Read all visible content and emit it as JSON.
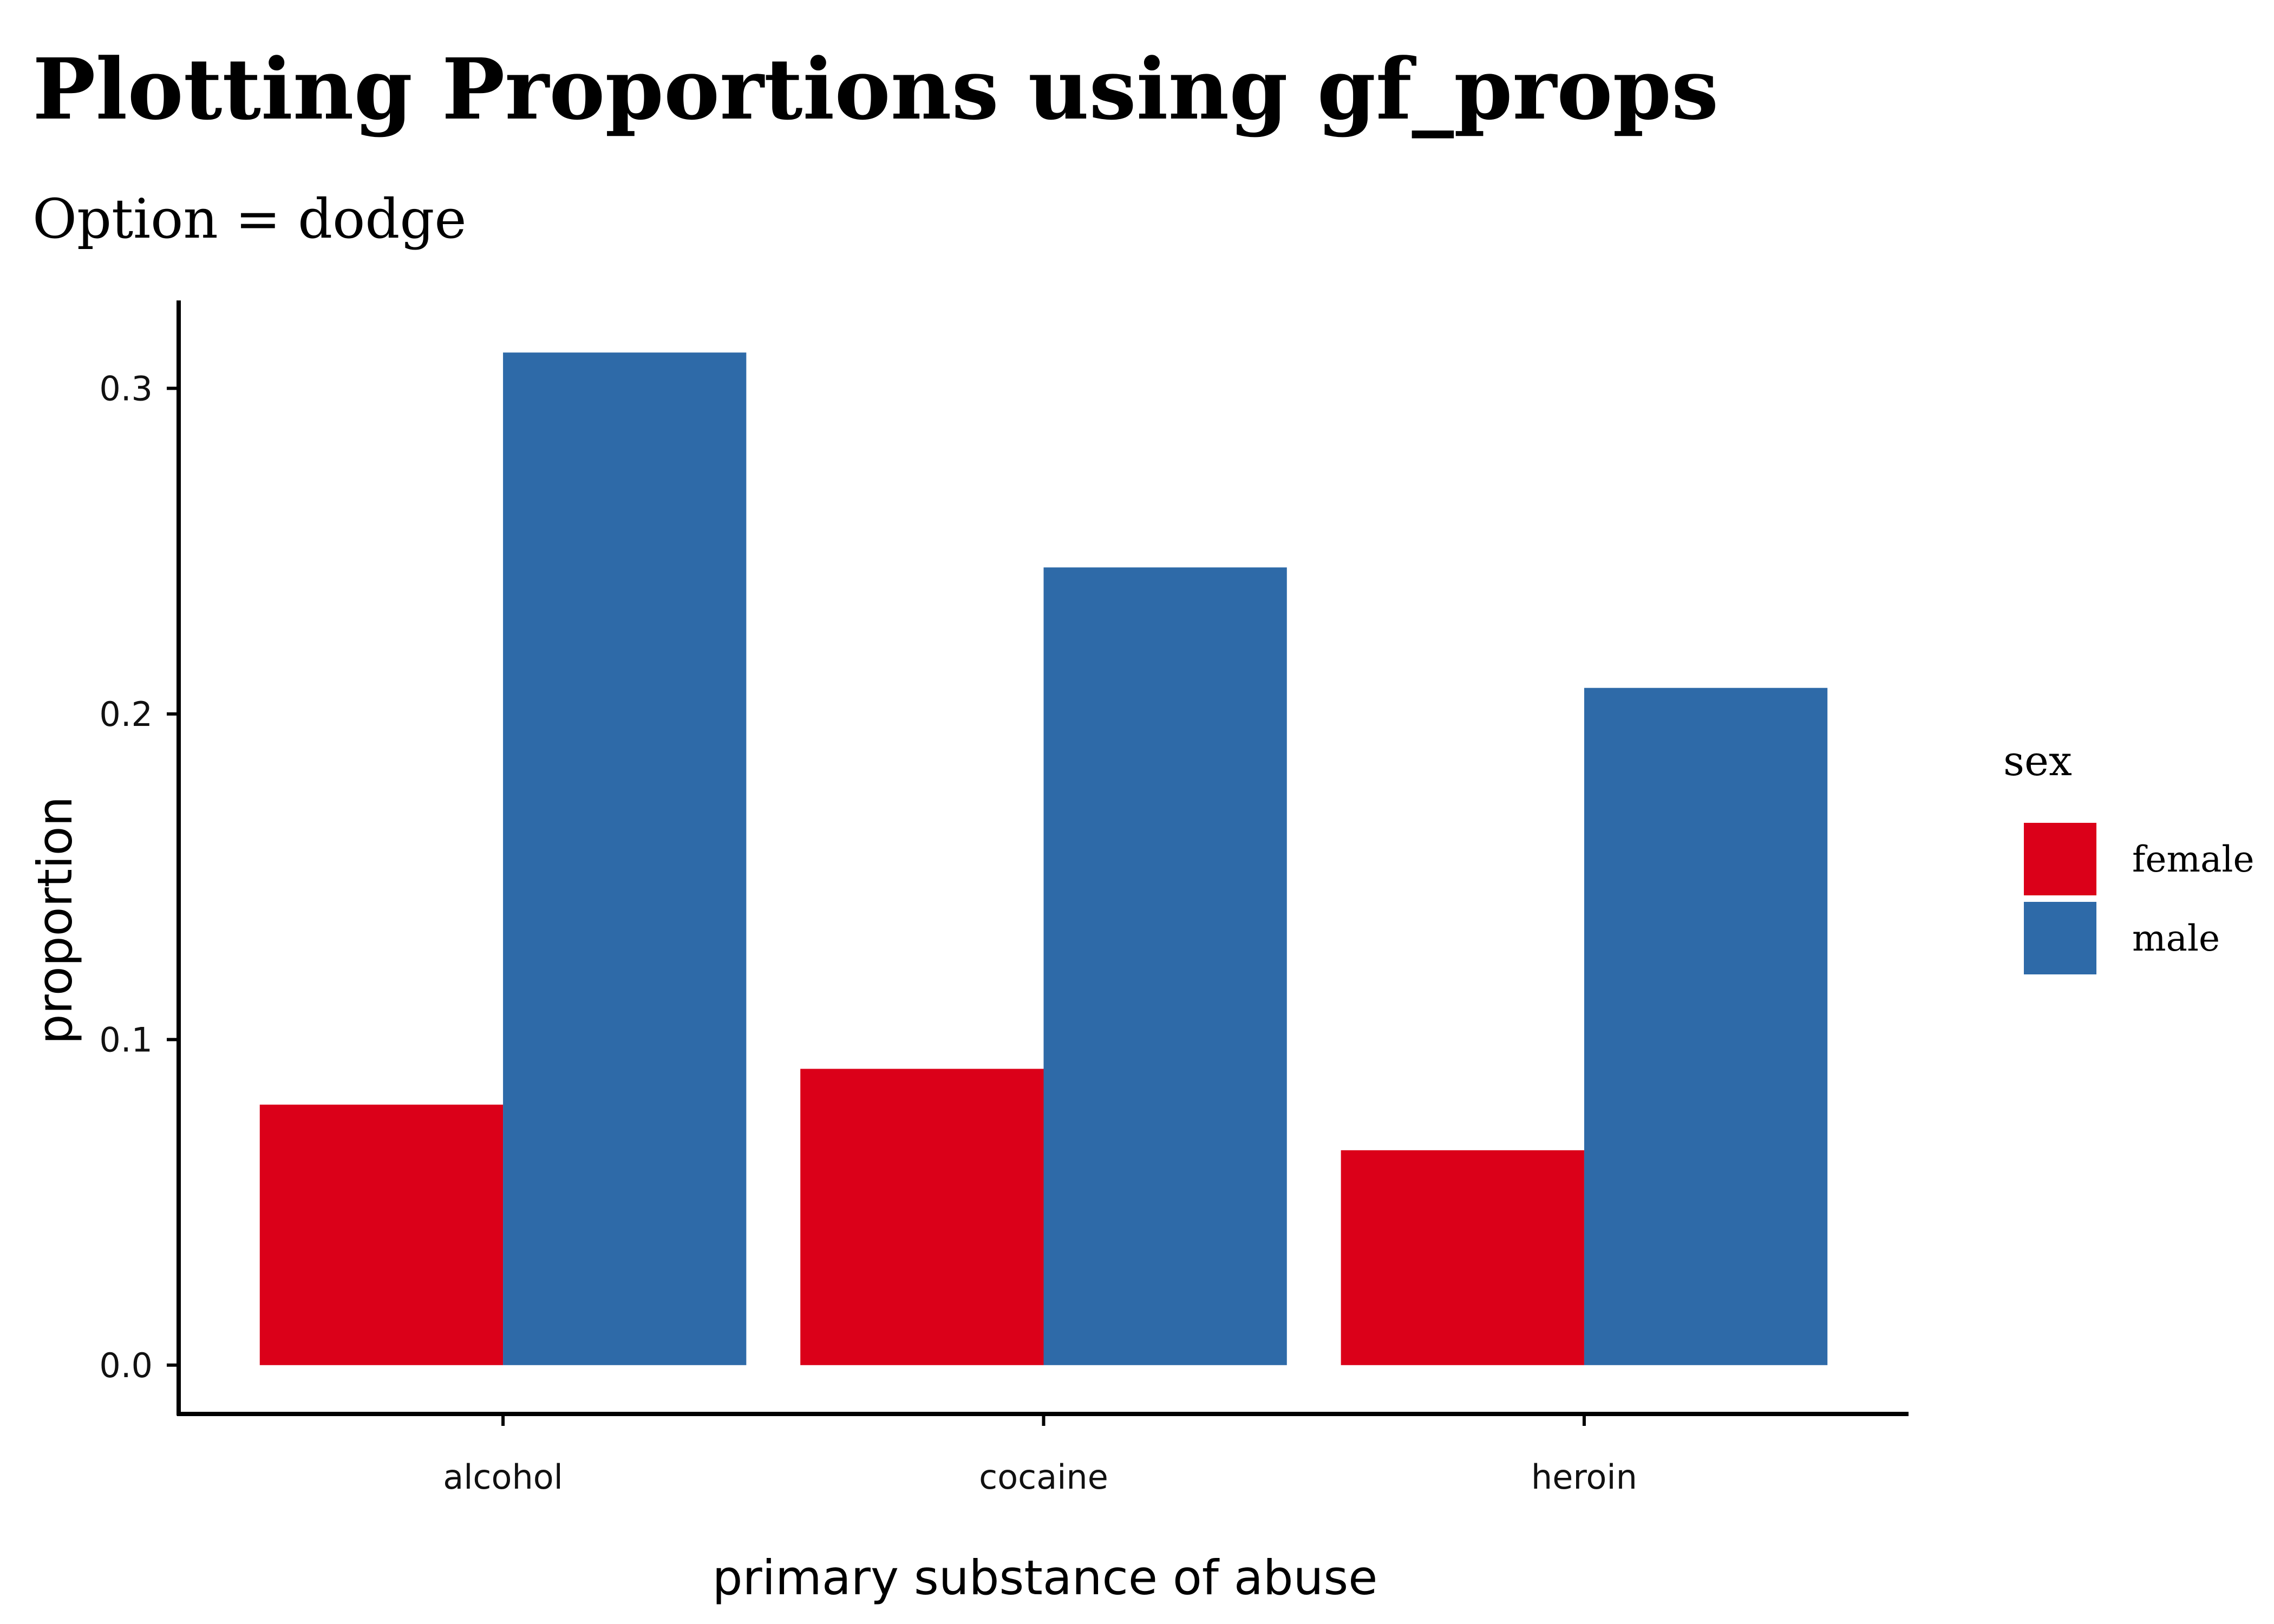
{
  "chart_data": {
    "type": "bar",
    "title": "Plotting Proportions using gf_props",
    "subtitle": "Option = dodge",
    "xlabel": "primary substance of abuse",
    "ylabel": "proportion",
    "categories": [
      "alcohol",
      "cocaine",
      "heroin"
    ],
    "series": [
      {
        "name": "female",
        "color": "#DB0019",
        "values": [
          0.08,
          0.091,
          0.066
        ]
      },
      {
        "name": "male",
        "color": "#2E6AA8",
        "values": [
          0.311,
          0.245,
          0.208
        ]
      }
    ],
    "ylim": [
      -0.015,
      0.327
    ],
    "yticks": [
      0.0,
      0.1,
      0.2,
      0.3
    ],
    "ytick_labels": [
      "0.0",
      "0.1",
      "0.2",
      "0.3"
    ],
    "bar_layout": "dodge",
    "grid": false,
    "legend": {
      "title": "sex",
      "position": "right"
    }
  }
}
